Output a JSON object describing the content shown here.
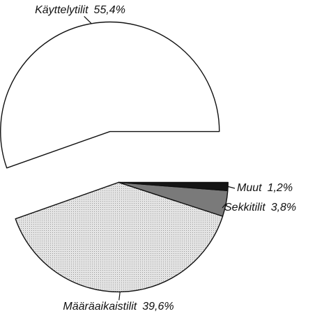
{
  "chart_data": {
    "type": "pie",
    "categories": [
      "Käyttelytilit",
      "Määräaikaistilit",
      "Sekkitilit",
      "Muut"
    ],
    "values": [
      55.4,
      39.6,
      3.8,
      1.2
    ],
    "value_labels": [
      "55,4%",
      "39,6%",
      "3,8%",
      "1,2%"
    ],
    "colors": [
      "#ffffff",
      "#d6d6d6",
      "#7a7a7a",
      "#151515"
    ]
  }
}
